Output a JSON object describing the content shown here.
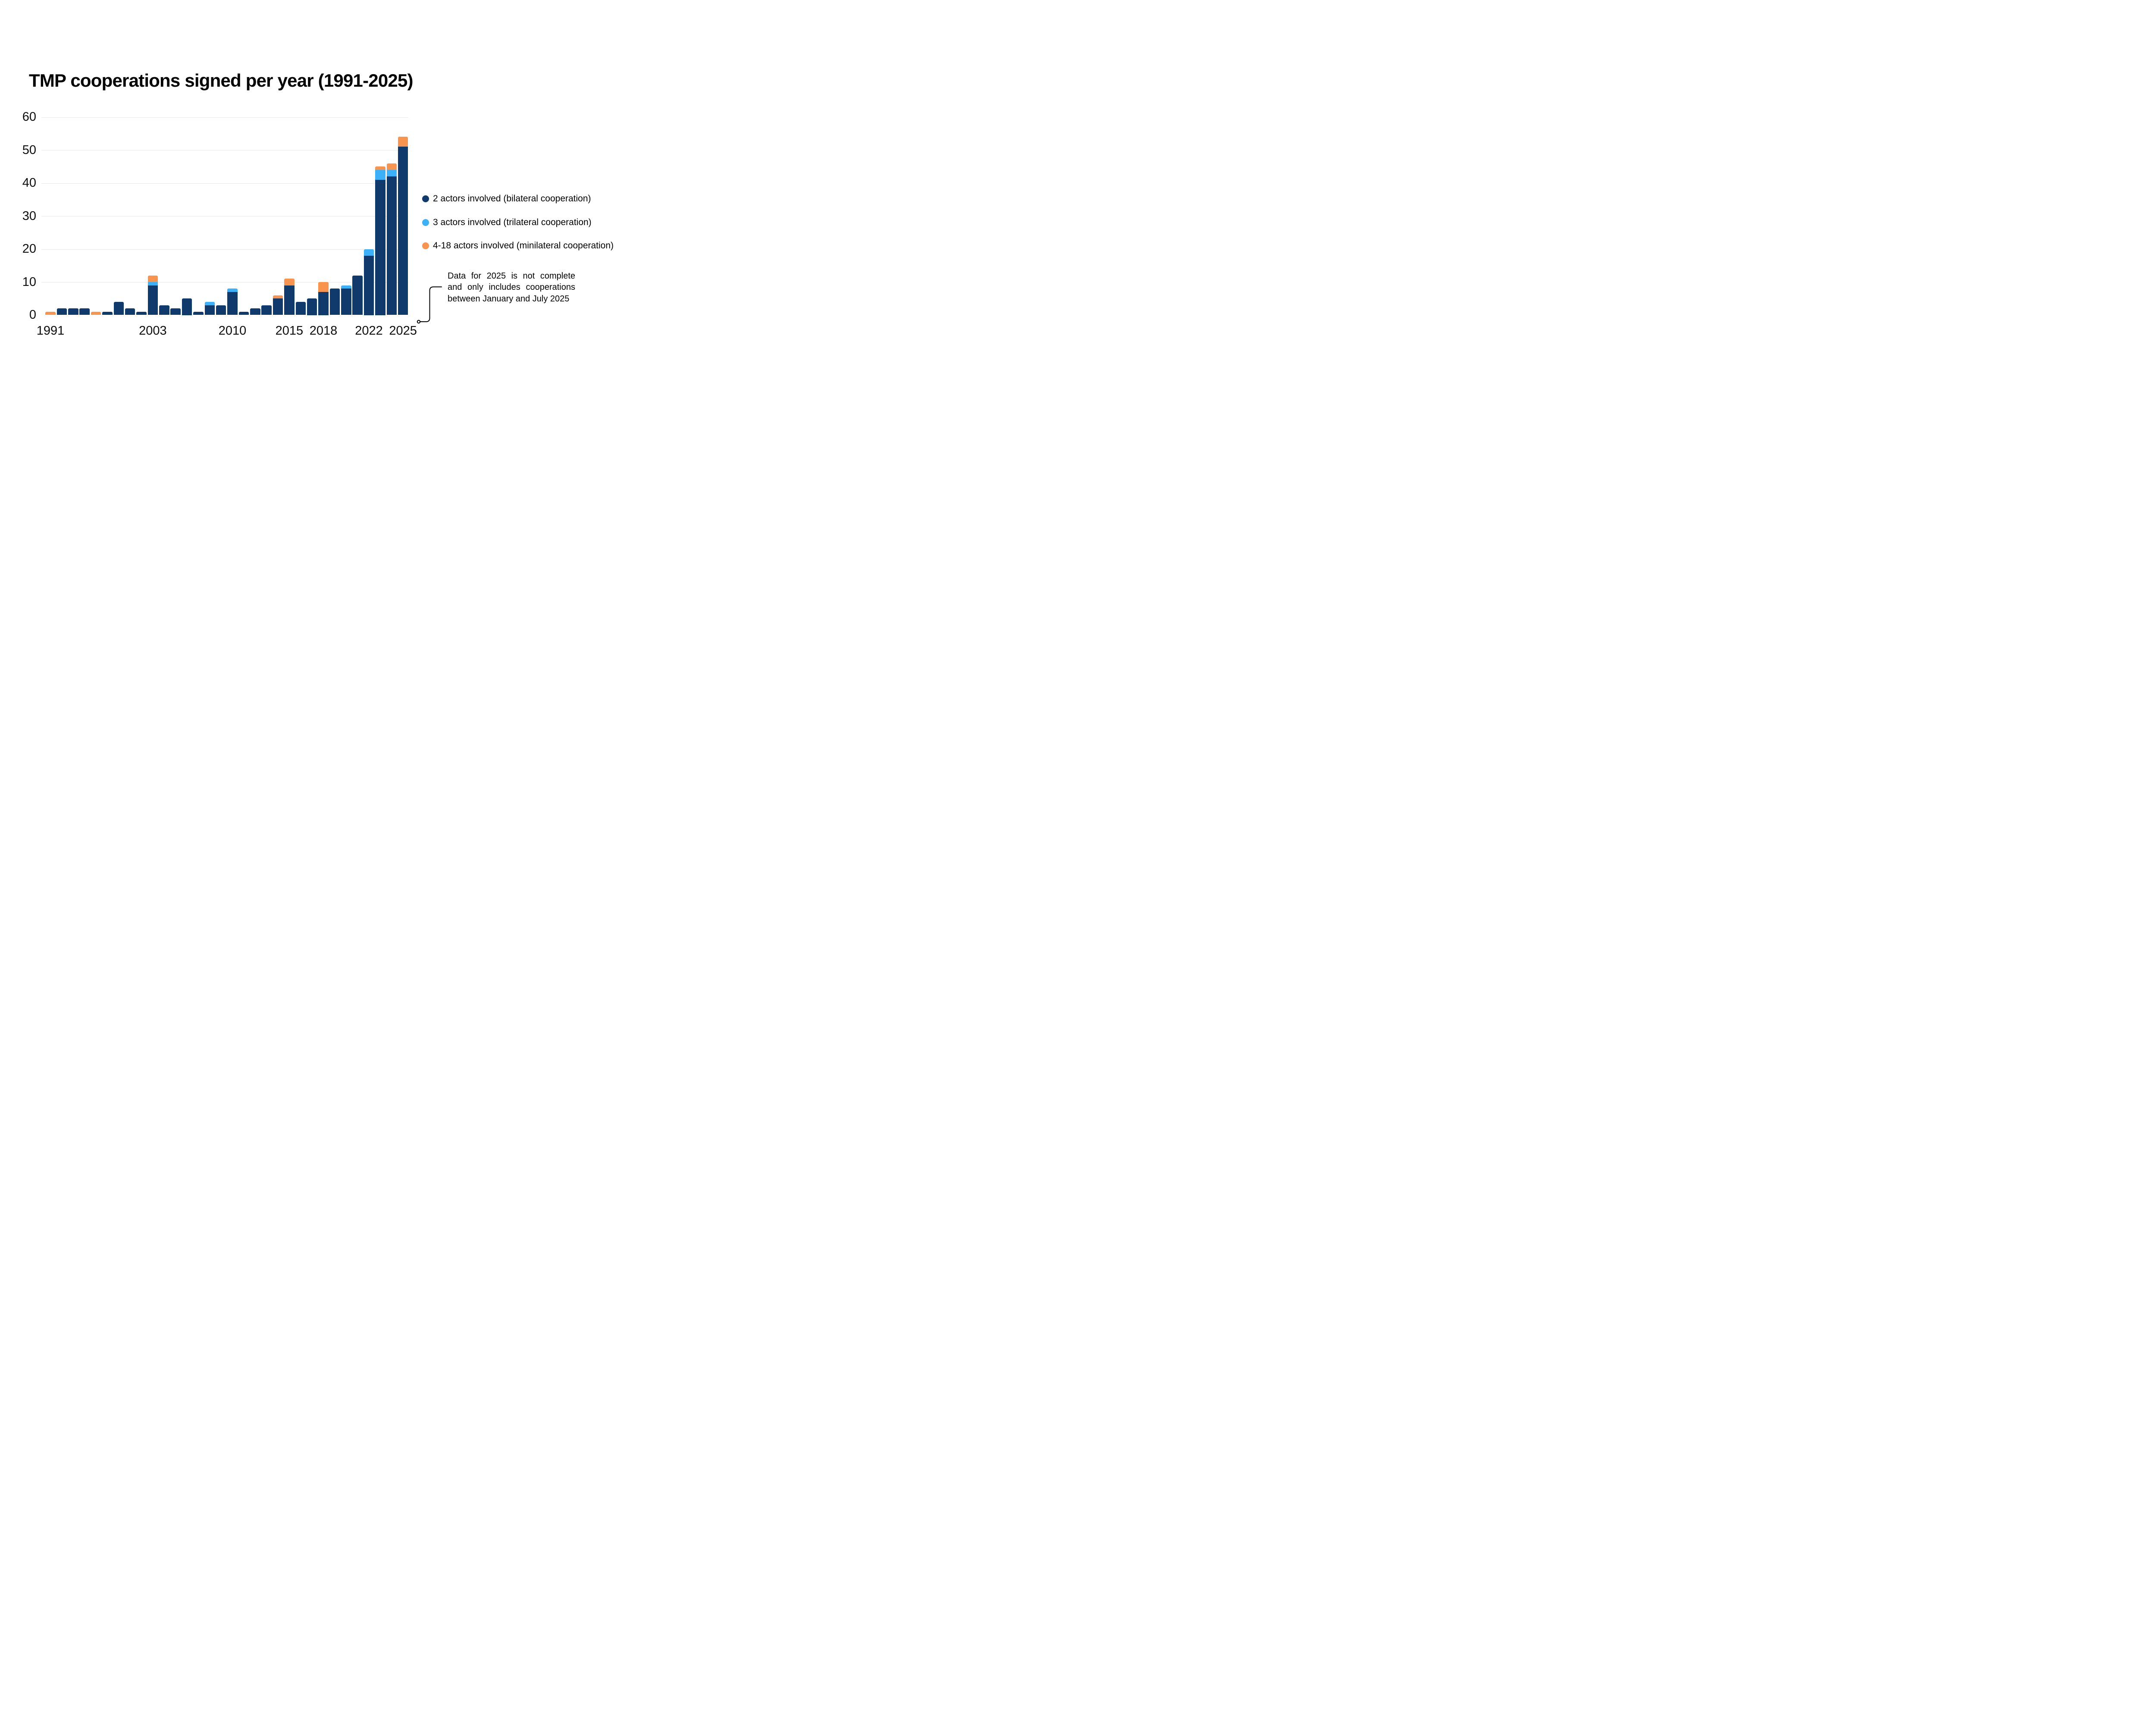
{
  "chart_data": {
    "type": "bar",
    "stacked": true,
    "title": "TMP cooperations signed per year (1991-2025)",
    "xlabel": "",
    "ylabel": "",
    "ylim": [
      0,
      60
    ],
    "yticks": [
      0,
      10,
      20,
      30,
      40,
      50,
      60
    ],
    "grid": "horizontal",
    "legend_position": "right",
    "categories": [
      "1991",
      "1992",
      "1993",
      "1994",
      "1995",
      "1996",
      "1997",
      "1998",
      "1999",
      "2003",
      "2004",
      "2005",
      "2006",
      "2007",
      "2008",
      "2009",
      "2010",
      "2011",
      "2012",
      "2013",
      "2014",
      "2015",
      "2016",
      "2017",
      "2018",
      "2019",
      "2020",
      "2021",
      "2022",
      "2023",
      "2024",
      "2025"
    ],
    "xticks": [
      {
        "label": "1991",
        "index": 0
      },
      {
        "label": "2003",
        "index": 9
      },
      {
        "label": "2010",
        "index": 16
      },
      {
        "label": "2015",
        "index": 21
      },
      {
        "label": "2018",
        "index": 24
      },
      {
        "label": "2022",
        "index": 28
      },
      {
        "label": "2025",
        "index": 31
      }
    ],
    "series": [
      {
        "name": "2 actors involved (bilateral cooperation)",
        "color": "#103a6b",
        "values": [
          0,
          2,
          2,
          2,
          0,
          1,
          4,
          2,
          1,
          9,
          3,
          2,
          5,
          1,
          3,
          3,
          7,
          1,
          2,
          3,
          5,
          9,
          4,
          5,
          7,
          8,
          8,
          12,
          18,
          41,
          42,
          51
        ]
      },
      {
        "name": "3 actors involved (trilateral cooperation)",
        "color": "#3ab1f8",
        "values": [
          0,
          0,
          0,
          0,
          0,
          0,
          0,
          0,
          0,
          1,
          0,
          0,
          0,
          0,
          1,
          0,
          1,
          0,
          0,
          0,
          0,
          0,
          0,
          0,
          0,
          0,
          1,
          0,
          2,
          3,
          2,
          0
        ]
      },
      {
        "name": "4-18 actors involved (minilateral cooperation)",
        "color": "#f9944f",
        "values": [
          1,
          0,
          0,
          0,
          1,
          0,
          0,
          0,
          0,
          2,
          0,
          0,
          0,
          0,
          0,
          0,
          0,
          0,
          0,
          0,
          1,
          2,
          0,
          0,
          3,
          0,
          0,
          0,
          0,
          1,
          2,
          3
        ]
      }
    ]
  },
  "annotation": {
    "lines": [
      "Data for 2025 is not complete",
      "and only includes cooperations",
      "between January and July 2025"
    ]
  }
}
